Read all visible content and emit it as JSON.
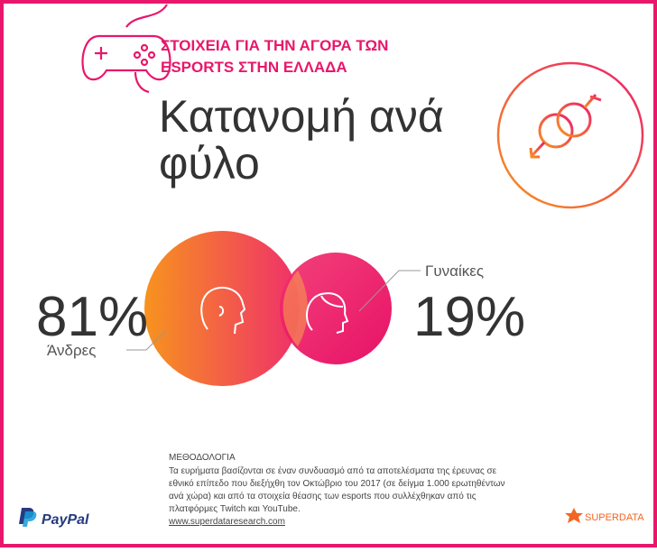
{
  "header": {
    "title_lines": [
      "ΣΤΟΙΧΕΙΑ ΓΙΑ ΤΗΝ ΑΓΟΡΑ ΤΩΝ",
      "ESPORTS ΣΤΗΝ ΕΛΛΑΔΑ"
    ],
    "heading_lines": [
      "Κατανομή ανά",
      "φύλο"
    ]
  },
  "men": {
    "percent": "81%",
    "label": "Άνδρες"
  },
  "women": {
    "percent": "19%",
    "label": "Γυναίκες"
  },
  "methodology": {
    "title": "ΜΕΘΟΔΟΛΟΓΙΑ",
    "lines": [
      "Τα ευρήματα βασίζονται σε έναν συνδυασμό από τα αποτελέσματα της έρευνας σε",
      "εθνικό επίπεδο που διεξήχθη τον Οκτώβριο του 2017 (σε δείγμα 1.000 ερωτηθέντων",
      "ανά χώρα) και από τα στοιχεία θέασης των esports που συλλέχθηκαν από τις",
      "πλατφόρμες Twitch και YouTube."
    ],
    "link": "www.superdataresearch.com"
  },
  "footer": {
    "left_logo": "PayPal",
    "right_logo": "SUPERDATA"
  }
}
